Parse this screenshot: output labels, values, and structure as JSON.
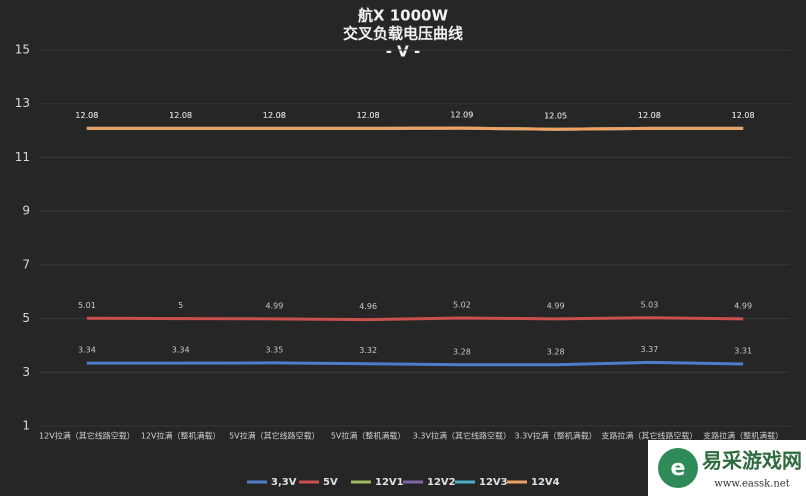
{
  "chart_data": {
    "type": "line",
    "title": "航X 1000W",
    "subtitle": "交叉负载电压曲线",
    "unit_label": "- V -",
    "categories": [
      "12V拉满（其它线路空载）",
      "12V拉满（整机满载）",
      "5V拉满（其它线路空载）",
      "5V拉满（整机满载）",
      "3.3V拉满（其它线路空载）",
      "3.3V拉满（整机满载）",
      "支路拉满（其它线路空载）",
      "支路拉满（整机满载）"
    ],
    "series": [
      {
        "name": "3,3V",
        "color": "#4f7ec9",
        "values": [
          3.34,
          3.34,
          3.35,
          3.32,
          3.28,
          3.28,
          3.37,
          3.31
        ]
      },
      {
        "name": "5V",
        "color": "#c9504d",
        "values": [
          5.01,
          5,
          4.99,
          4.96,
          5.02,
          4.99,
          5.03,
          4.99
        ]
      },
      {
        "name": "12V1",
        "color": "#9bbb59",
        "values": [
          12.08,
          12.08,
          12.08,
          12.08,
          12.09,
          12.05,
          12.08,
          12.08
        ]
      },
      {
        "name": "12V2",
        "color": "#8064a2",
        "values": [
          12.08,
          12.08,
          12.08,
          12.08,
          12.09,
          12.05,
          12.08,
          12.08
        ]
      },
      {
        "name": "12V3",
        "color": "#4bacc6",
        "values": [
          12.08,
          12.08,
          12.08,
          12.08,
          12.09,
          12.05,
          12.08,
          12.08
        ]
      },
      {
        "name": "12V4",
        "color": "#f0a060",
        "values": [
          12.08,
          12.08,
          12.08,
          12.08,
          12.09,
          12.05,
          12.08,
          12.08
        ]
      }
    ],
    "ylim": [
      1,
      15
    ],
    "yticks": [
      1,
      3,
      5,
      7,
      9,
      11,
      13,
      15
    ],
    "grid": true,
    "legend": "bottom"
  },
  "watermark": {
    "title": "易采游戏网",
    "url": "www.eassk.net"
  }
}
